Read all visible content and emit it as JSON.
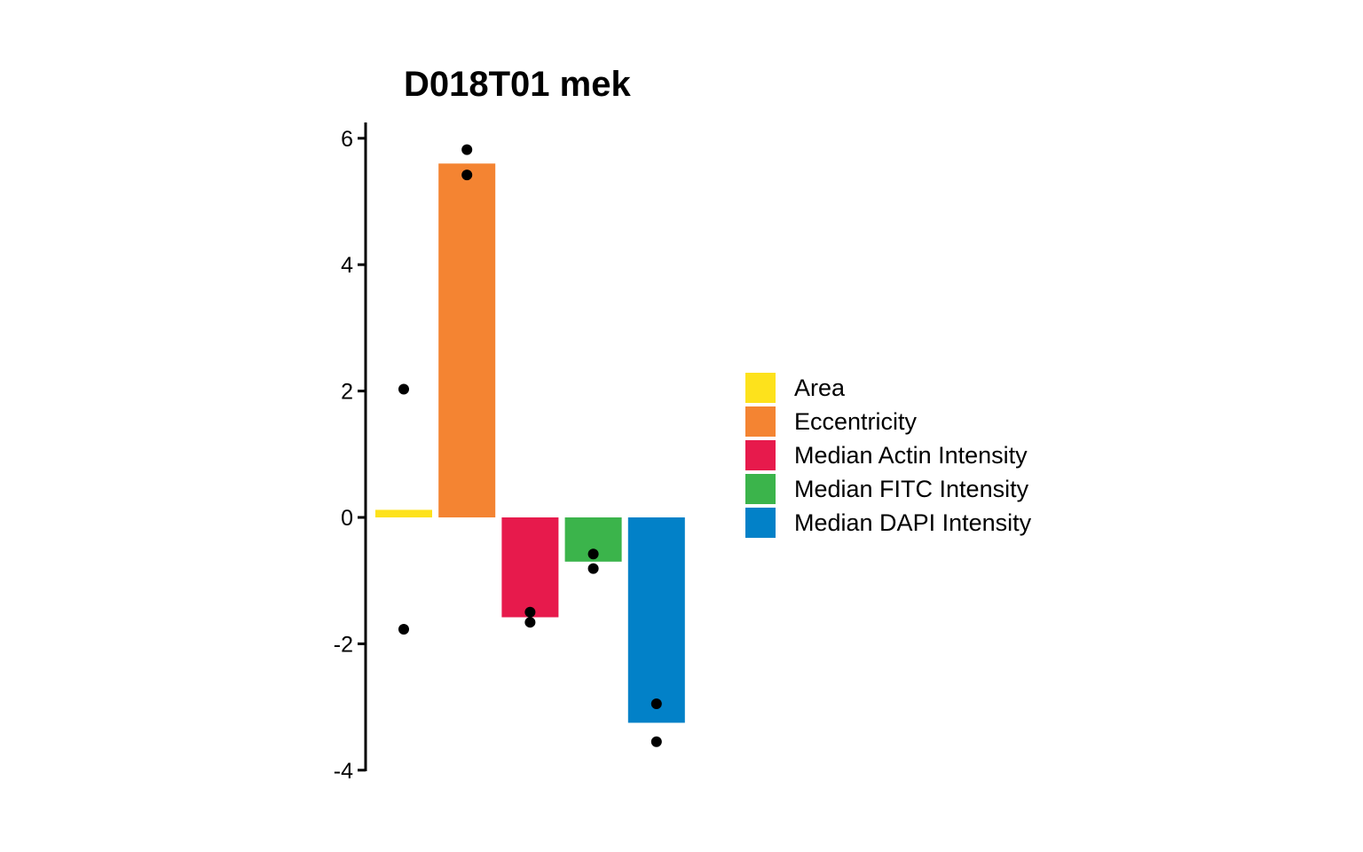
{
  "chart_data": {
    "type": "bar",
    "title": "D018T01 mek",
    "xlabel": "",
    "ylabel": "",
    "ylim": [
      -4,
      6.3
    ],
    "yticks": [
      -4,
      -2,
      0,
      2,
      4,
      6
    ],
    "ytick_labels": [
      "-4",
      "-2",
      "0",
      "2",
      "4",
      "6"
    ],
    "categories": [
      "Area",
      "Eccentricity",
      "Median Actin Intensity",
      "Median FITC Intensity",
      "Median DAPI Intensity"
    ],
    "values": [
      0.12,
      5.6,
      -1.58,
      -0.7,
      -3.25
    ],
    "colors": [
      "#FDE21C",
      "#F48432",
      "#E71A4C",
      "#3BB44B",
      "#0281C8"
    ],
    "points": [
      [
        2.03,
        -1.77
      ],
      [
        5.82,
        5.42
      ],
      [
        -1.5,
        -1.66
      ],
      [
        -0.58,
        -0.81
      ],
      [
        -2.95,
        -3.55
      ]
    ],
    "point_color": "#000000",
    "grid": false,
    "legend": {
      "position": "right",
      "entries": [
        "Area",
        "Eccentricity",
        "Median Actin Intensity",
        "Median FITC Intensity",
        "Median DAPI Intensity"
      ]
    }
  }
}
